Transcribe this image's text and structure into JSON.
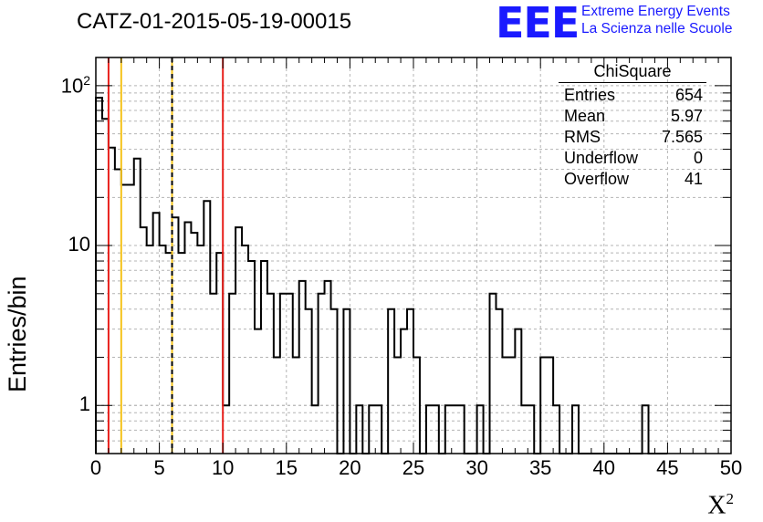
{
  "chart_data": {
    "type": "bar",
    "histogram": true,
    "title": "CATZ-01-2015-05-19-00015",
    "xlabel": "X",
    "xlabel_sup": "2",
    "ylabel": "Entries/bin",
    "xlim": [
      0,
      50
    ],
    "ylim": [
      0.5,
      150
    ],
    "yscale": "log",
    "grid": true,
    "bin_width": 0.5,
    "bin_edges_start": 0,
    "values": [
      84,
      62,
      41,
      30,
      24,
      24,
      35,
      13,
      10,
      16,
      10,
      9,
      15,
      9,
      14,
      12,
      10,
      19,
      5,
      9,
      1,
      5,
      13,
      10,
      8,
      3,
      8,
      5,
      2,
      5,
      5,
      2,
      6,
      4,
      1,
      5,
      6,
      4,
      0,
      4,
      0,
      1,
      0,
      1,
      1,
      0,
      4,
      2,
      3,
      4,
      2,
      0,
      1,
      1,
      0,
      1,
      1,
      1,
      0,
      0,
      1,
      0,
      5,
      4,
      2,
      2,
      3,
      1,
      1,
      0,
      2,
      2,
      1,
      0,
      0,
      1,
      0,
      0,
      0,
      0,
      0,
      0,
      0,
      0,
      0,
      0,
      1,
      0,
      0,
      0
    ],
    "x_ticks": [
      "0",
      "5",
      "10",
      "15",
      "20",
      "25",
      "30",
      "35",
      "40",
      "45",
      "50"
    ],
    "y_ticks": [
      {
        "value": 1,
        "label": "1"
      },
      {
        "value": 10,
        "label": "10"
      },
      {
        "value": 100,
        "label": "10",
        "sup": "2"
      }
    ],
    "vertical_lines": [
      {
        "x": 1,
        "color": "#e8201c",
        "style": "solid"
      },
      {
        "x": 2,
        "color": "#f5c31b",
        "style": "solid"
      },
      {
        "x": 6,
        "color": "#f5c31b",
        "style": "solid"
      },
      {
        "x": 6,
        "color": "#000000",
        "style": "dashed"
      },
      {
        "x": 10,
        "color": "#e8201c",
        "style": "solid"
      }
    ],
    "stats_box": {
      "title": "ChiSquare",
      "rows": [
        {
          "label": "Entries",
          "value": "654"
        },
        {
          "label": "Mean",
          "value": "5.97"
        },
        {
          "label": "RMS",
          "value": "7.565"
        },
        {
          "label": "Underflow",
          "value": "0"
        },
        {
          "label": "Overflow",
          "value": "41"
        }
      ]
    }
  },
  "logo": {
    "mark": "EEE",
    "line1": "Extreme Energy Events",
    "line2": "La Scienza nelle Scuole",
    "color": "#1a1aff"
  }
}
